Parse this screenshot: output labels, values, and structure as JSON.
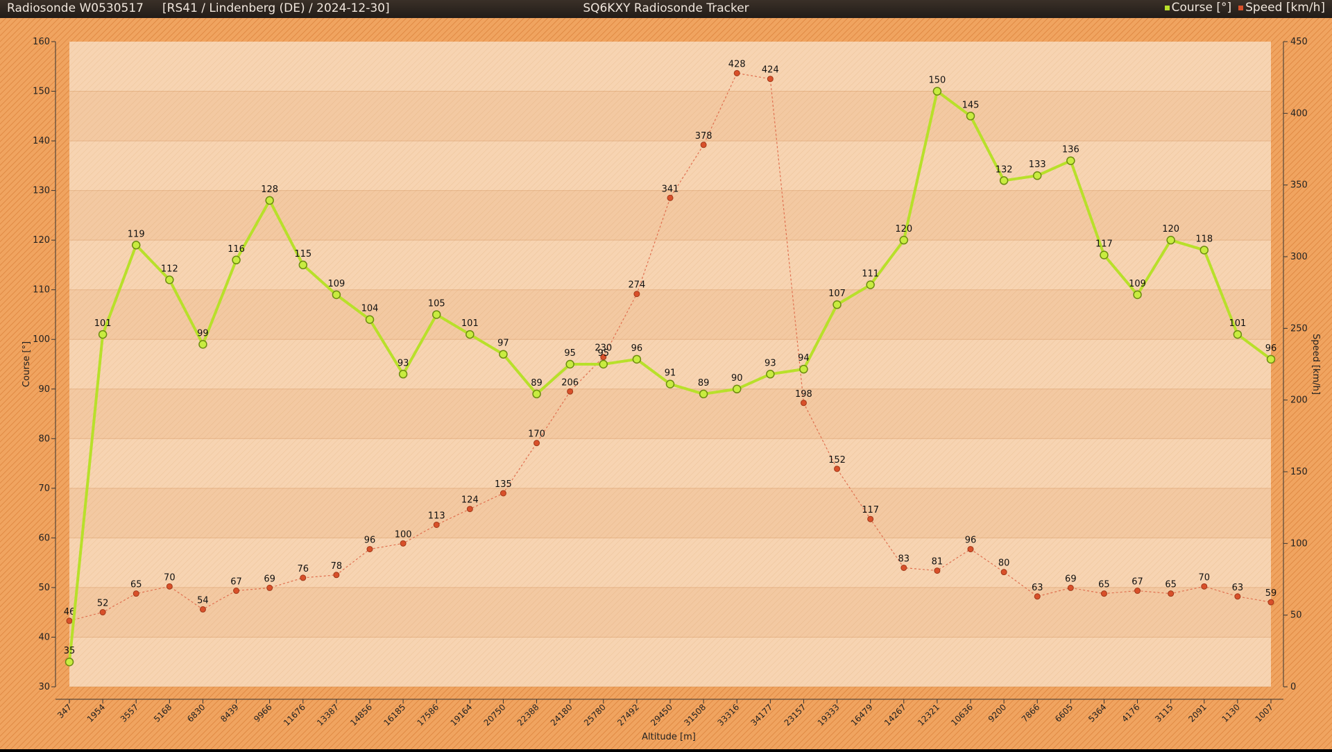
{
  "header": {
    "sonde": "Radiosonde W0530517",
    "info": "[RS41 / Lindenberg (DE) / 2024-12-30]",
    "app_title": "SQ6KXY Radiosonde Tracker",
    "legend_course": "Course [°]",
    "legend_speed": "Speed [km/h]"
  },
  "colors": {
    "course": "#b8e02a",
    "speed": "#d8502a",
    "background": "#eea060",
    "plot": "#f8d4b0"
  },
  "chart_data": {
    "type": "line",
    "xlabel": "Altitude [m]",
    "ylabel_left": "Course [°]",
    "ylabel_right": "Speed [km/h]",
    "ylim_left": [
      30,
      160
    ],
    "ylim_right": [
      0,
      450
    ],
    "yticks_left": [
      "30",
      "40",
      "50",
      "60",
      "70",
      "80",
      "90",
      "100",
      "110",
      "120",
      "130",
      "140",
      "150",
      "160"
    ],
    "yticks_right": [
      "0",
      "50",
      "100",
      "150",
      "200",
      "250",
      "300",
      "350",
      "400",
      "450"
    ],
    "grid": true,
    "legend_position": "top-right",
    "categories": [
      "347",
      "1954",
      "3557",
      "5168",
      "6830",
      "8439",
      "9966",
      "11676",
      "13387",
      "14856",
      "16185",
      "17586",
      "19164",
      "20750",
      "22388",
      "24180",
      "25780",
      "27492",
      "29450",
      "31508",
      "33316",
      "34177",
      "23157",
      "19333",
      "16479",
      "14267",
      "12321",
      "10636",
      "9200",
      "7866",
      "6605",
      "5364",
      "4176",
      "3115",
      "2091",
      "1130",
      "1007"
    ],
    "series": [
      {
        "name": "Course [°]",
        "axis": "left",
        "values": [
          35,
          101,
          119,
          112,
          99,
          116,
          128,
          115,
          109,
          104,
          93,
          105,
          101,
          97,
          89,
          95,
          95,
          96,
          91,
          89,
          90,
          93,
          94,
          107,
          111,
          120,
          150,
          145,
          132,
          133,
          136,
          117,
          109,
          120,
          118,
          101,
          96
        ]
      },
      {
        "name": "Speed [km/h]",
        "axis": "right",
        "values": [
          46,
          52,
          65,
          70,
          54,
          67,
          69,
          76,
          78,
          96,
          100,
          113,
          124,
          135,
          170,
          206,
          230,
          274,
          341,
          378,
          428,
          424,
          198,
          152,
          117,
          83,
          81,
          96,
          80,
          63,
          69,
          65,
          67,
          65,
          70,
          63,
          59
        ]
      }
    ]
  }
}
